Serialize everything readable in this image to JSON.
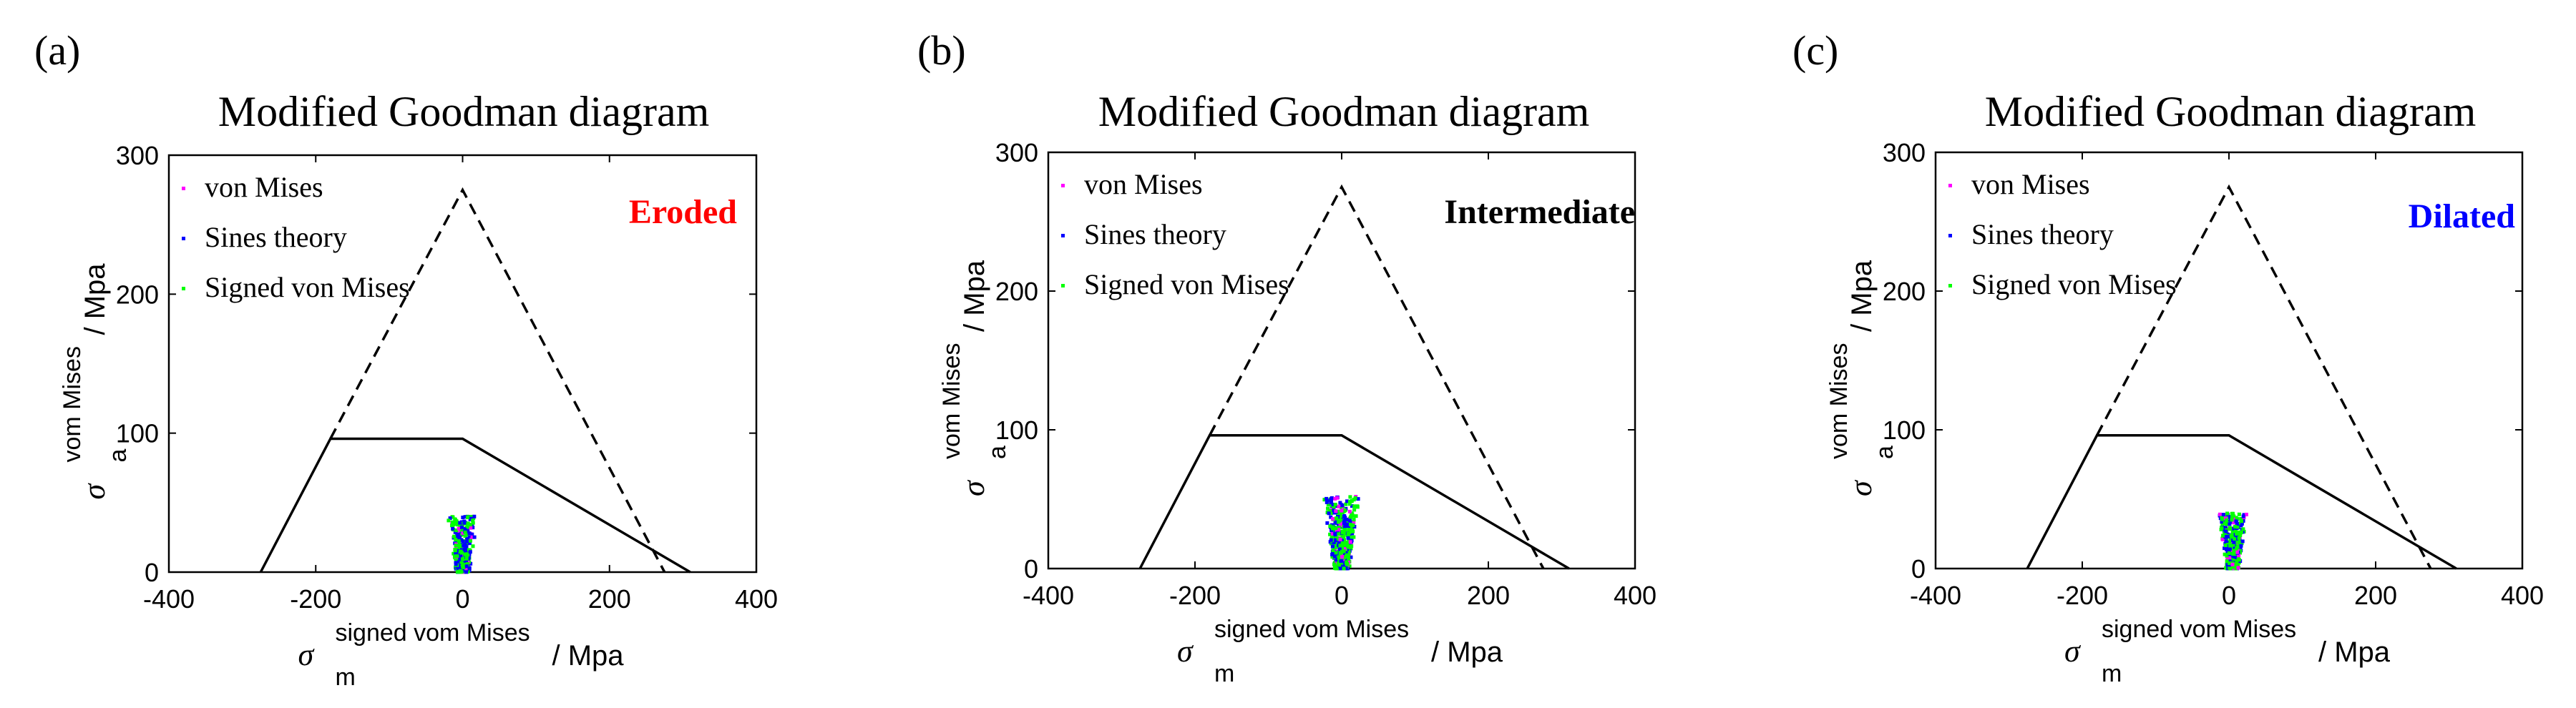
{
  "figure": {
    "description_colors": {
      "axes": "#000000",
      "von_mises": "#ff00ff",
      "sines": "#0000ff",
      "signed_von_mises": "#00ff00",
      "eroded": "#ff0000",
      "intermediate": "#000000",
      "dilated": "#0000ff"
    }
  },
  "chart_data": [
    {
      "type": "scatter",
      "panel_label": "(a)",
      "title": "Modified Goodman diagram",
      "condition_label": "Eroded",
      "condition_color": "#ff0000",
      "xlabel_symbol": "σ",
      "xlabel_sub": "m",
      "xlabel_sup": "signed vom Mises",
      "xlabel_unit": "/ Mpa",
      "ylabel_symbol": "σ",
      "ylabel_sub": "a",
      "ylabel_sup": "vom Mises",
      "ylabel_unit": "/ Mpa",
      "xlim": [
        -400,
        400
      ],
      "ylim": [
        0,
        300
      ],
      "xticks": [
        -400,
        -200,
        0,
        200,
        400
      ],
      "yticks": [
        0,
        100,
        200,
        300
      ],
      "legend": [
        {
          "name": "von Mises",
          "color": "#ff00ff"
        },
        {
          "name": "Sines theory",
          "color": "#0000ff"
        },
        {
          "name": "Signed von Mises",
          "color": "#00ff00"
        }
      ],
      "goodman_solid": {
        "x": [
          -275,
          -180,
          0,
          310
        ],
        "y": [
          0,
          96,
          96,
          0
        ]
      },
      "goodman_dashed": {
        "x": [
          -180,
          0,
          275
        ],
        "y": [
          96,
          275,
          0
        ]
      },
      "scatter_cluster": {
        "center_x": 0,
        "spread_x": 18,
        "max_y": 40,
        "count": 420
      }
    },
    {
      "type": "scatter",
      "panel_label": "(b)",
      "title": "Modified Goodman diagram",
      "condition_label": "Intermediate",
      "condition_color": "#000000",
      "xlabel_symbol": "σ",
      "xlabel_sub": "m",
      "xlabel_sup": "signed vom Mises",
      "xlabel_unit": "/ Mpa",
      "ylabel_symbol": "σ",
      "ylabel_sub": "a",
      "ylabel_sup": "vom Mises",
      "ylabel_unit": "/ Mpa",
      "xlim": [
        -400,
        400
      ],
      "ylim": [
        0,
        300
      ],
      "xticks": [
        -400,
        -200,
        0,
        200,
        400
      ],
      "yticks": [
        0,
        100,
        200,
        300
      ],
      "legend": [
        {
          "name": "von Mises",
          "color": "#ff00ff"
        },
        {
          "name": "Sines theory",
          "color": "#0000ff"
        },
        {
          "name": "Signed von Mises",
          "color": "#00ff00"
        }
      ],
      "goodman_solid": {
        "x": [
          -275,
          -180,
          0,
          310
        ],
        "y": [
          0,
          96,
          96,
          0
        ]
      },
      "goodman_dashed": {
        "x": [
          -180,
          0,
          275
        ],
        "y": [
          96,
          275,
          0
        ]
      },
      "scatter_cluster": {
        "center_x": 0,
        "spread_x": 22,
        "max_y": 52,
        "count": 520
      }
    },
    {
      "type": "scatter",
      "panel_label": "(c)",
      "title": "Modified Goodman diagram",
      "condition_label": "Dilated",
      "condition_color": "#0000ff",
      "xlabel_symbol": "σ",
      "xlabel_sub": "m",
      "xlabel_sup": "signed vom Mises",
      "xlabel_unit": "/ Mpa",
      "ylabel_symbol": "σ",
      "ylabel_sub": "a",
      "ylabel_sup": "vom Mises",
      "ylabel_unit": "/ Mpa",
      "xlim": [
        -400,
        400
      ],
      "ylim": [
        0,
        300
      ],
      "xticks": [
        -400,
        -200,
        0,
        200,
        400
      ],
      "yticks": [
        0,
        100,
        200,
        300
      ],
      "legend": [
        {
          "name": "von Mises",
          "color": "#ff00ff"
        },
        {
          "name": "Sines theory",
          "color": "#0000ff"
        },
        {
          "name": "Signed von Mises",
          "color": "#00ff00"
        }
      ],
      "goodman_solid": {
        "x": [
          -275,
          -180,
          0,
          310
        ],
        "y": [
          0,
          96,
          96,
          0
        ]
      },
      "goodman_dashed": {
        "x": [
          -180,
          0,
          275
        ],
        "y": [
          96,
          275,
          0
        ]
      },
      "scatter_cluster": {
        "center_x": 5,
        "spread_x": 18,
        "max_y": 40,
        "count": 420
      }
    }
  ]
}
